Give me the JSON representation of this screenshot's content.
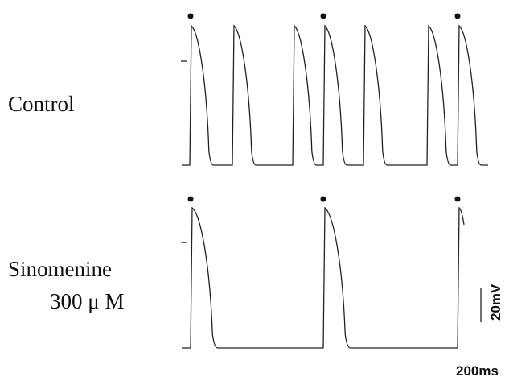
{
  "labels": {
    "control": "Control",
    "drug": "Sinomenine",
    "dose": "300 μ M"
  },
  "scale": {
    "voltage": "20mV",
    "time": "200ms"
  }
}
